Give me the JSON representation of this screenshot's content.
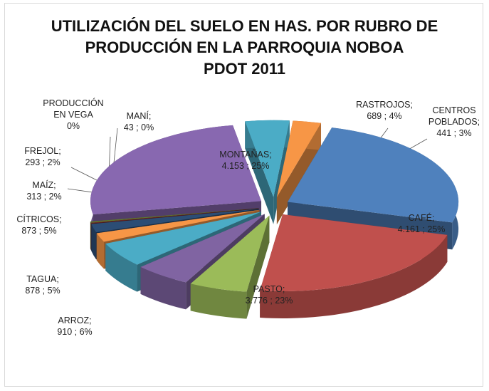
{
  "chart_data": {
    "type": "pie",
    "title": [
      "UTILIZACIÓN DEL SUELO EN HAS. POR RUBRO DE",
      "PRODUCCIÓN EN LA PARROQUIA NOBOA",
      "PDOT 2011"
    ],
    "categories": [
      "CAFÉ;",
      "PASTO;",
      "ARROZ;",
      "TAGUA;",
      "CÍTRICOS;",
      "MAÍZ;",
      "FREJOL;",
      "PRODUCCIÓN EN VEGA",
      "MANÍ;",
      "MONTAÑAS;",
      "RASTROJOS;",
      "CENTROS POBLADOS;"
    ],
    "values": [
      4161,
      3776,
      910,
      878,
      873,
      313,
      293,
      20,
      43,
      4153,
      689,
      441
    ],
    "value_labels": [
      "4.161 ; 25%",
      "3.776 ; 23%",
      "910 ; 6%",
      "878 ; 5%",
      "873 ; 5%",
      "313 ; 2%",
      "293 ; 2%",
      "0%",
      "43 ; 0%",
      "4.153 ; 25%",
      "689 ; 4%",
      "441 ; 3%"
    ],
    "colors": [
      "#4f81bd",
      "#c0504d",
      "#9bbb59",
      "#8064a2",
      "#4bacc6",
      "#f79646",
      "#2c4d75",
      "#772c2a",
      "#5f7530",
      "#8868b0",
      "#4bacc6",
      "#f79646"
    ]
  }
}
